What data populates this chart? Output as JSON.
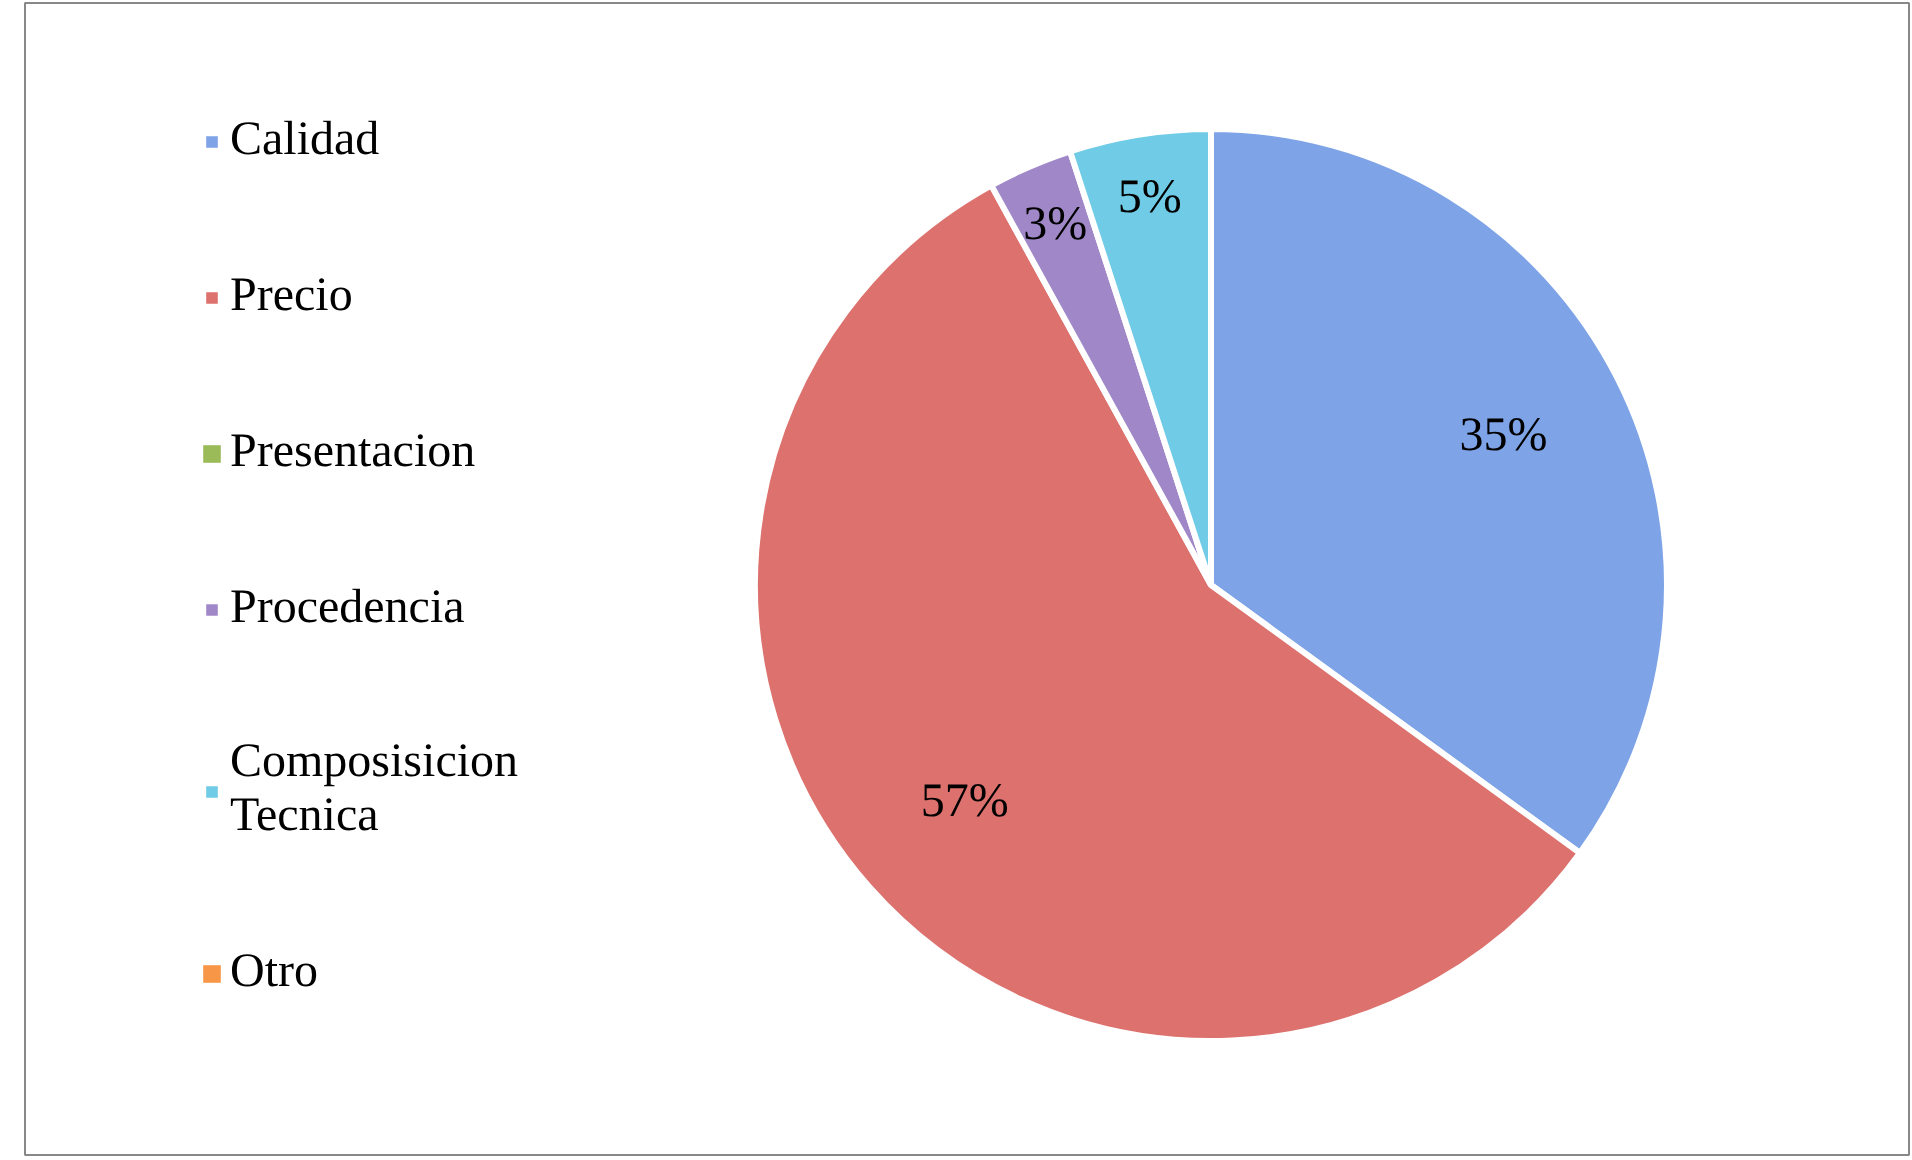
{
  "chart_data": {
    "type": "pie",
    "categories": [
      "Calidad",
      "Precio",
      "Presentacion",
      "Procedencia",
      "Composisicion Tecnica",
      "Otro"
    ],
    "values": [
      35,
      57,
      0,
      3,
      5,
      0
    ],
    "colors": [
      "#7ea3e6",
      "#dc716d",
      "#9bbb59",
      "#a088c8",
      "#6fcbe6",
      "#f79646"
    ],
    "value_labels": [
      "35%",
      "57%",
      null,
      "3%",
      "5%",
      null
    ],
    "legend": "left"
  }
}
